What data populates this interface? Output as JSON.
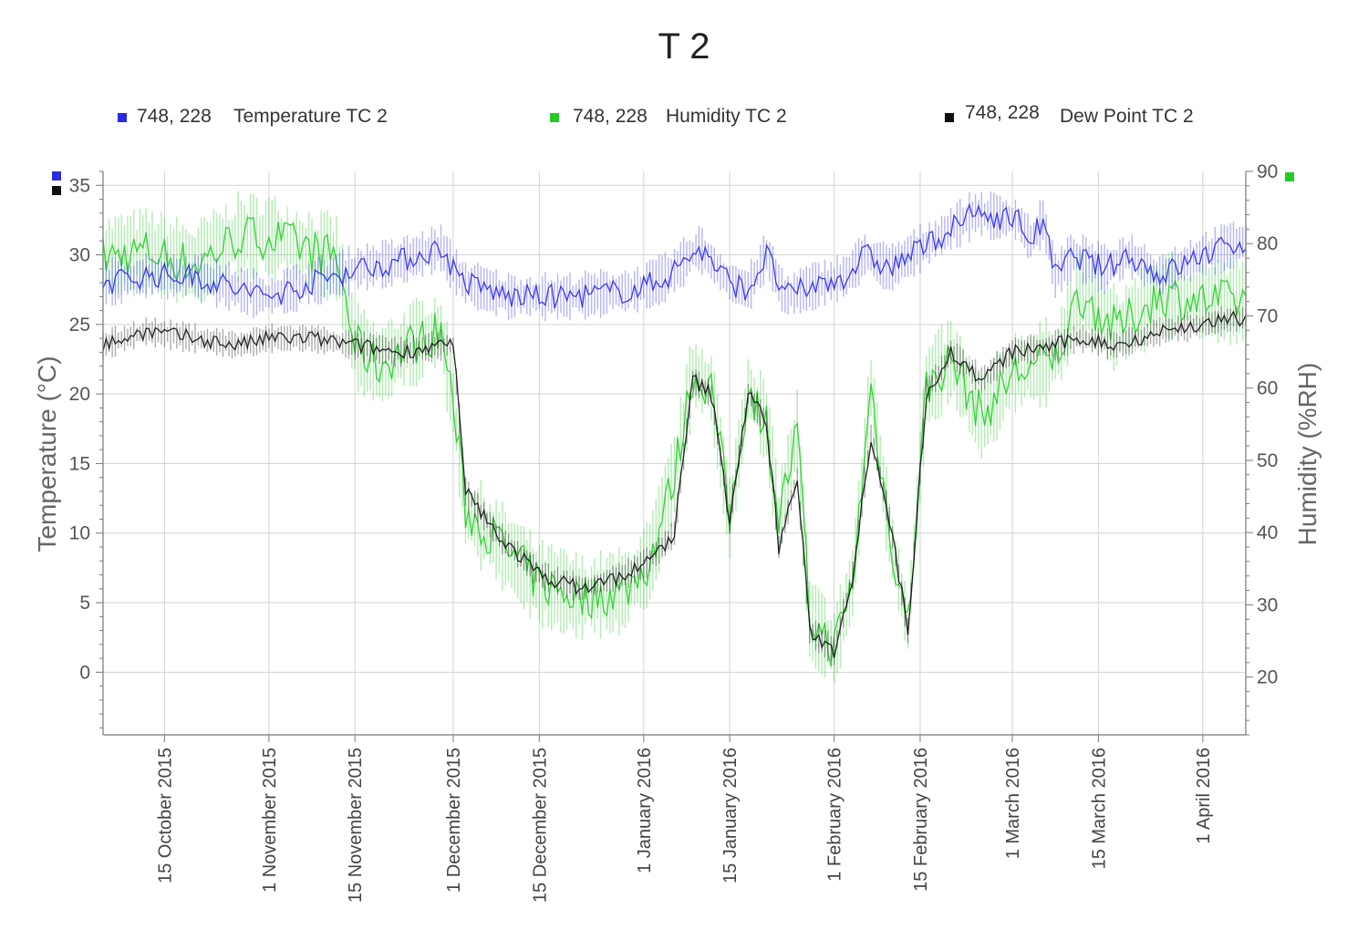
{
  "chart_data": {
    "type": "line",
    "title": "T 2",
    "legend": [
      {
        "id": "temp",
        "coord": "748, 228",
        "label": "Temperature TC 2",
        "color": "#2a2ae6"
      },
      {
        "id": "hum",
        "coord": "748, 228",
        "label": "Humidity TC 2",
        "color": "#22cc22"
      },
      {
        "id": "dew",
        "coord": "748, 228",
        "label": "Dew Point TC 2",
        "color": "#111111"
      }
    ],
    "y_left": {
      "label": "Temperature (°C)",
      "min": -4.5,
      "max": 36,
      "ticks": [
        0,
        5,
        10,
        15,
        20,
        25,
        30,
        35
      ],
      "minor_step": 1
    },
    "y_right": {
      "label": "Humidity (%RH)",
      "min": 12,
      "max": 90,
      "ticks": [
        20,
        30,
        40,
        50,
        60,
        70,
        80,
        90
      ],
      "minor_step": 2
    },
    "x_axis": {
      "start": "2015-10-05",
      "end": "2016-04-08",
      "ticks": [
        {
          "date": "2015-10-15",
          "label": "15 October 2015"
        },
        {
          "date": "2015-11-01",
          "label": "1 November 2015"
        },
        {
          "date": "2015-11-15",
          "label": "15 November 2015"
        },
        {
          "date": "2015-12-01",
          "label": "1 December 2015"
        },
        {
          "date": "2015-12-15",
          "label": "15 December 2015"
        },
        {
          "date": "2016-01-01",
          "label": "1 January 2016"
        },
        {
          "date": "2016-01-15",
          "label": "15 January 2016"
        },
        {
          "date": "2016-02-01",
          "label": "1 February 2016"
        },
        {
          "date": "2016-02-15",
          "label": "15 February 2016"
        },
        {
          "date": "2016-03-01",
          "label": "1 March 2016"
        },
        {
          "date": "2016-03-15",
          "label": "15 March 2016"
        },
        {
          "date": "2016-04-01",
          "label": "1 April 2016"
        }
      ]
    },
    "series": [
      {
        "name": "Temperature TC 2",
        "axis": "left",
        "color": "#2a2ae6",
        "daily_swing": 2.6,
        "points": [
          [
            "2015-10-05",
            28
          ],
          [
            "2015-10-12",
            28.5
          ],
          [
            "2015-10-20",
            28.5
          ],
          [
            "2015-10-27",
            27.5
          ],
          [
            "2015-11-01",
            27
          ],
          [
            "2015-11-08",
            28
          ],
          [
            "2015-11-15",
            29
          ],
          [
            "2015-11-22",
            29.5
          ],
          [
            "2015-11-29",
            30.5
          ],
          [
            "2015-12-01",
            29
          ],
          [
            "2015-12-03",
            28
          ],
          [
            "2015-12-10",
            27
          ],
          [
            "2015-12-20",
            27
          ],
          [
            "2015-12-31",
            27.5
          ],
          [
            "2016-01-05",
            28.5
          ],
          [
            "2016-01-10",
            30.5
          ],
          [
            "2016-01-15",
            28
          ],
          [
            "2016-01-18",
            27.5
          ],
          [
            "2016-01-21",
            30
          ],
          [
            "2016-01-24",
            27
          ],
          [
            "2016-01-27",
            27.5
          ],
          [
            "2016-02-03",
            28.5
          ],
          [
            "2016-02-06",
            30
          ],
          [
            "2016-02-10",
            29
          ],
          [
            "2016-02-17",
            31
          ],
          [
            "2016-02-24",
            33
          ],
          [
            "2016-03-02",
            32.5
          ],
          [
            "2016-03-04",
            31
          ],
          [
            "2016-03-06",
            32.5
          ],
          [
            "2016-03-08",
            28.5
          ],
          [
            "2016-03-11",
            30
          ],
          [
            "2016-03-16",
            29
          ],
          [
            "2016-03-20",
            30
          ],
          [
            "2016-03-25",
            28.5
          ],
          [
            "2016-04-01",
            30
          ],
          [
            "2016-04-08",
            31
          ]
        ]
      },
      {
        "name": "Humidity TC 2",
        "axis": "right",
        "color": "#22cc22",
        "daily_swing": 9,
        "points": [
          [
            "2015-10-05",
            78
          ],
          [
            "2015-10-12",
            79
          ],
          [
            "2015-10-20",
            77
          ],
          [
            "2015-10-27",
            81
          ],
          [
            "2015-11-01",
            81
          ],
          [
            "2015-11-08",
            79
          ],
          [
            "2015-11-12",
            78
          ],
          [
            "2015-11-15",
            66
          ],
          [
            "2015-11-19",
            63
          ],
          [
            "2015-11-24",
            66
          ],
          [
            "2015-11-29",
            68
          ],
          [
            "2015-12-01",
            58
          ],
          [
            "2015-12-03",
            43
          ],
          [
            "2015-12-08",
            39
          ],
          [
            "2015-12-15",
            33
          ],
          [
            "2015-12-22",
            31
          ],
          [
            "2015-12-29",
            32
          ],
          [
            "2016-01-02",
            36
          ],
          [
            "2016-01-06",
            48
          ],
          [
            "2016-01-09",
            62
          ],
          [
            "2016-01-12",
            60
          ],
          [
            "2016-01-15",
            42
          ],
          [
            "2016-01-18",
            60
          ],
          [
            "2016-01-21",
            55
          ],
          [
            "2016-01-23",
            42
          ],
          [
            "2016-01-26",
            54
          ],
          [
            "2016-01-28",
            28
          ],
          [
            "2016-02-01",
            24
          ],
          [
            "2016-02-04",
            33
          ],
          [
            "2016-02-07",
            60
          ],
          [
            "2016-02-10",
            40
          ],
          [
            "2016-02-13",
            27
          ],
          [
            "2016-02-16",
            60
          ],
          [
            "2016-02-20",
            64
          ],
          [
            "2016-02-25",
            56
          ],
          [
            "2016-03-01",
            62
          ],
          [
            "2016-03-08",
            64
          ],
          [
            "2016-03-12",
            73
          ],
          [
            "2016-03-18",
            68
          ],
          [
            "2016-03-25",
            73
          ],
          [
            "2016-04-01",
            72
          ],
          [
            "2016-04-08",
            72
          ]
        ]
      },
      {
        "name": "Dew Point TC 2",
        "axis": "left",
        "color": "#111111",
        "daily_swing": 1.6,
        "points": [
          [
            "2015-10-05",
            23.5
          ],
          [
            "2015-10-12",
            24.5
          ],
          [
            "2015-10-20",
            24
          ],
          [
            "2015-10-27",
            23.5
          ],
          [
            "2015-11-01",
            24
          ],
          [
            "2015-11-08",
            24
          ],
          [
            "2015-11-15",
            23.5
          ],
          [
            "2015-11-22",
            23
          ],
          [
            "2015-11-29",
            23.5
          ],
          [
            "2015-12-01",
            23.5
          ],
          [
            "2015-12-03",
            13
          ],
          [
            "2015-12-08",
            10
          ],
          [
            "2015-12-15",
            7
          ],
          [
            "2015-12-22",
            6
          ],
          [
            "2015-12-29",
            7
          ],
          [
            "2016-01-02",
            8
          ],
          [
            "2016-01-06",
            10
          ],
          [
            "2016-01-09",
            21
          ],
          [
            "2016-01-12",
            20
          ],
          [
            "2016-01-15",
            11
          ],
          [
            "2016-01-18",
            20
          ],
          [
            "2016-01-21",
            18
          ],
          [
            "2016-01-23",
            9
          ],
          [
            "2016-01-26",
            14
          ],
          [
            "2016-01-28",
            3
          ],
          [
            "2016-02-01",
            1.5
          ],
          [
            "2016-02-04",
            7
          ],
          [
            "2016-02-07",
            17
          ],
          [
            "2016-02-10",
            11
          ],
          [
            "2016-02-13",
            3
          ],
          [
            "2016-02-16",
            20
          ],
          [
            "2016-02-20",
            23
          ],
          [
            "2016-02-25",
            21
          ],
          [
            "2016-03-01",
            23
          ],
          [
            "2016-03-08",
            23.5
          ],
          [
            "2016-03-12",
            24
          ],
          [
            "2016-03-18",
            23.5
          ],
          [
            "2016-03-25",
            24.5
          ],
          [
            "2016-04-01",
            25
          ],
          [
            "2016-04-08",
            25.5
          ]
        ]
      }
    ]
  }
}
